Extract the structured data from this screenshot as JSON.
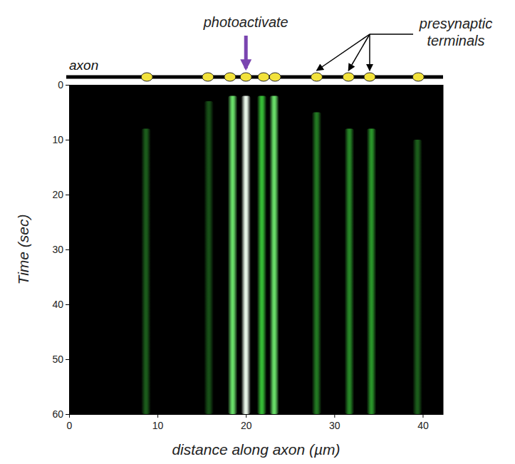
{
  "chart_data": {
    "type": "kymograph",
    "xlabel": "distance along axon (µm)",
    "ylabel": "Time (sec)",
    "xlim": [
      0,
      42.3
    ],
    "ylim": [
      0,
      60
    ],
    "xticks": [
      0,
      10,
      20,
      30,
      40
    ],
    "yticks": [
      0,
      10,
      20,
      30,
      40,
      50,
      60
    ],
    "axon_label": "axon",
    "annotations": [
      "photoactivate",
      "presynaptic terminals"
    ],
    "terminals": [
      8.8,
      15.7,
      18.2,
      20.0,
      22.0,
      23.3,
      28.0,
      31.6,
      34.0,
      39.5
    ],
    "stripes": {
      "x": [
        8.7,
        15.8,
        18.5,
        20.0,
        21.8,
        23.2,
        28.0,
        31.7,
        34.2,
        39.4
      ],
      "start": [
        8,
        3,
        2,
        2,
        2,
        2,
        5,
        8,
        8,
        10
      ],
      "intensity": [
        0.35,
        0.3,
        0.85,
        1.0,
        0.7,
        0.85,
        0.45,
        0.5,
        0.55,
        0.35
      ]
    },
    "color": "#3fdc3f"
  }
}
